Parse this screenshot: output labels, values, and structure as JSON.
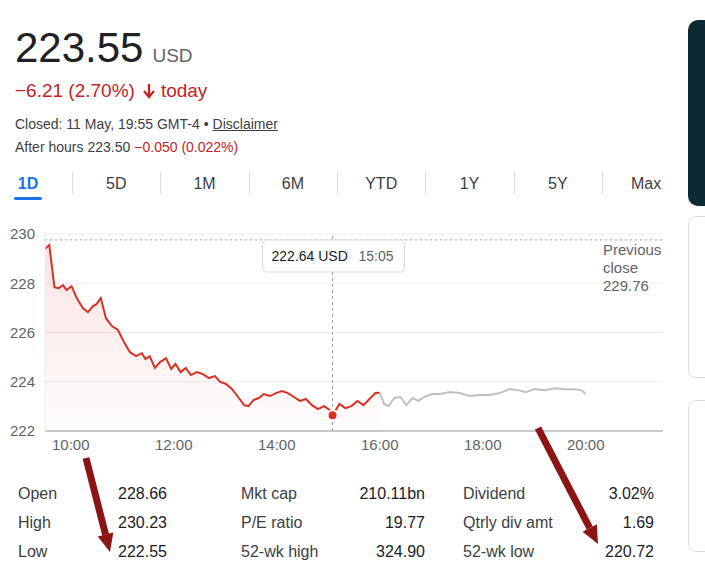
{
  "header": {
    "price": "223.55",
    "currency": "USD",
    "change": "−6.21 (2.70%)",
    "period": "today",
    "status": "Closed: 11 May, 19:55 GMT-4",
    "separator": "•",
    "disclaimer": "Disclaimer",
    "after_hours_label": "After hours",
    "after_hours_price": "223.50",
    "after_hours_change": "−0.050 (0.022%)"
  },
  "tabs": {
    "items": [
      "1D",
      "5D",
      "1M",
      "6M",
      "YTD",
      "1Y",
      "5Y",
      "Max"
    ],
    "active": "1D"
  },
  "chart_data": {
    "type": "line",
    "xlim": [
      570,
      1290
    ],
    "xticks": [
      {
        "value": 600,
        "label": "10:00"
      },
      {
        "value": 720,
        "label": "12:00"
      },
      {
        "value": 840,
        "label": "14:00"
      },
      {
        "value": 960,
        "label": "16:00"
      },
      {
        "value": 1080,
        "label": "18:00"
      },
      {
        "value": 1200,
        "label": "20:00"
      }
    ],
    "ylim": [
      222,
      230
    ],
    "yticks": [
      222,
      224,
      226,
      228,
      230
    ],
    "grid": true,
    "series": [
      {
        "type": "area",
        "color": "#d93025",
        "x": [
          570,
          575,
          581,
          586,
          591,
          595,
          601,
          607,
          614,
          620,
          626,
          630,
          635,
          641,
          648,
          655,
          662,
          669,
          676,
          683,
          687,
          692,
          698,
          704,
          711,
          717,
          722,
          728,
          734,
          740,
          747,
          754,
          761,
          768,
          774,
          781,
          788,
          795,
          802,
          807,
          813,
          819,
          825,
          832,
          839,
          846,
          853,
          860,
          867,
          874,
          881,
          888,
          895,
          902,
          905,
          913,
          920,
          927,
          934,
          941,
          948,
          955,
          960
        ],
        "values": [
          229.4,
          229.55,
          227.84,
          227.8,
          227.92,
          227.72,
          227.88,
          227.4,
          226.99,
          226.83,
          227.07,
          227.15,
          227.4,
          226.58,
          226.26,
          226.1,
          225.61,
          225.2,
          225.04,
          225.16,
          224.92,
          225.04,
          224.56,
          224.8,
          224.96,
          224.52,
          224.72,
          224.39,
          224.56,
          224.27,
          224.39,
          224.31,
          224.15,
          224.23,
          223.99,
          223.91,
          223.7,
          223.38,
          223.05,
          223.01,
          223.26,
          223.34,
          223.5,
          223.42,
          223.54,
          223.62,
          223.54,
          223.38,
          223.22,
          223.3,
          223.05,
          222.89,
          223.01,
          222.85,
          222.64,
          223.1,
          222.93,
          223.01,
          223.22,
          223.05,
          223.3,
          223.54,
          223.55
        ]
      },
      {
        "type": "line",
        "color": "#bdc1c6",
        "x": [
          960,
          965,
          970,
          977,
          984,
          991,
          998,
          1005,
          1012,
          1021,
          1030,
          1042,
          1053,
          1065,
          1076,
          1088,
          1100,
          1111,
          1121,
          1130,
          1140,
          1152,
          1164,
          1175,
          1187,
          1195,
          1200
        ],
        "values": [
          223.55,
          223.1,
          223.01,
          223.34,
          223.38,
          223.05,
          223.34,
          223.22,
          223.38,
          223.5,
          223.5,
          223.58,
          223.54,
          223.42,
          223.46,
          223.46,
          223.54,
          223.7,
          223.66,
          223.58,
          223.7,
          223.66,
          223.74,
          223.7,
          223.7,
          223.66,
          223.5
        ]
      }
    ],
    "previous_close": {
      "label": "Previous close",
      "value": 229.76
    },
    "tooltip": {
      "value": 222.64,
      "unit": "USD",
      "x": {
        "value": 905,
        "label": "15:05"
      }
    }
  },
  "stats": [
    [
      {
        "label": "Open",
        "value": "228.66"
      },
      {
        "label": "High",
        "value": "230.23"
      },
      {
        "label": "Low",
        "value": "222.55"
      }
    ],
    [
      {
        "label": "Mkt cap",
        "value": "210.11bn"
      },
      {
        "label": "P/E ratio",
        "value": "19.77"
      },
      {
        "label": "52-wk high",
        "value": "324.90"
      }
    ],
    [
      {
        "label": "Dividend",
        "value": "3.02%"
      },
      {
        "label": "Qtrly div amt",
        "value": "1.69"
      },
      {
        "label": "52-wk low",
        "value": "220.72"
      }
    ]
  ]
}
